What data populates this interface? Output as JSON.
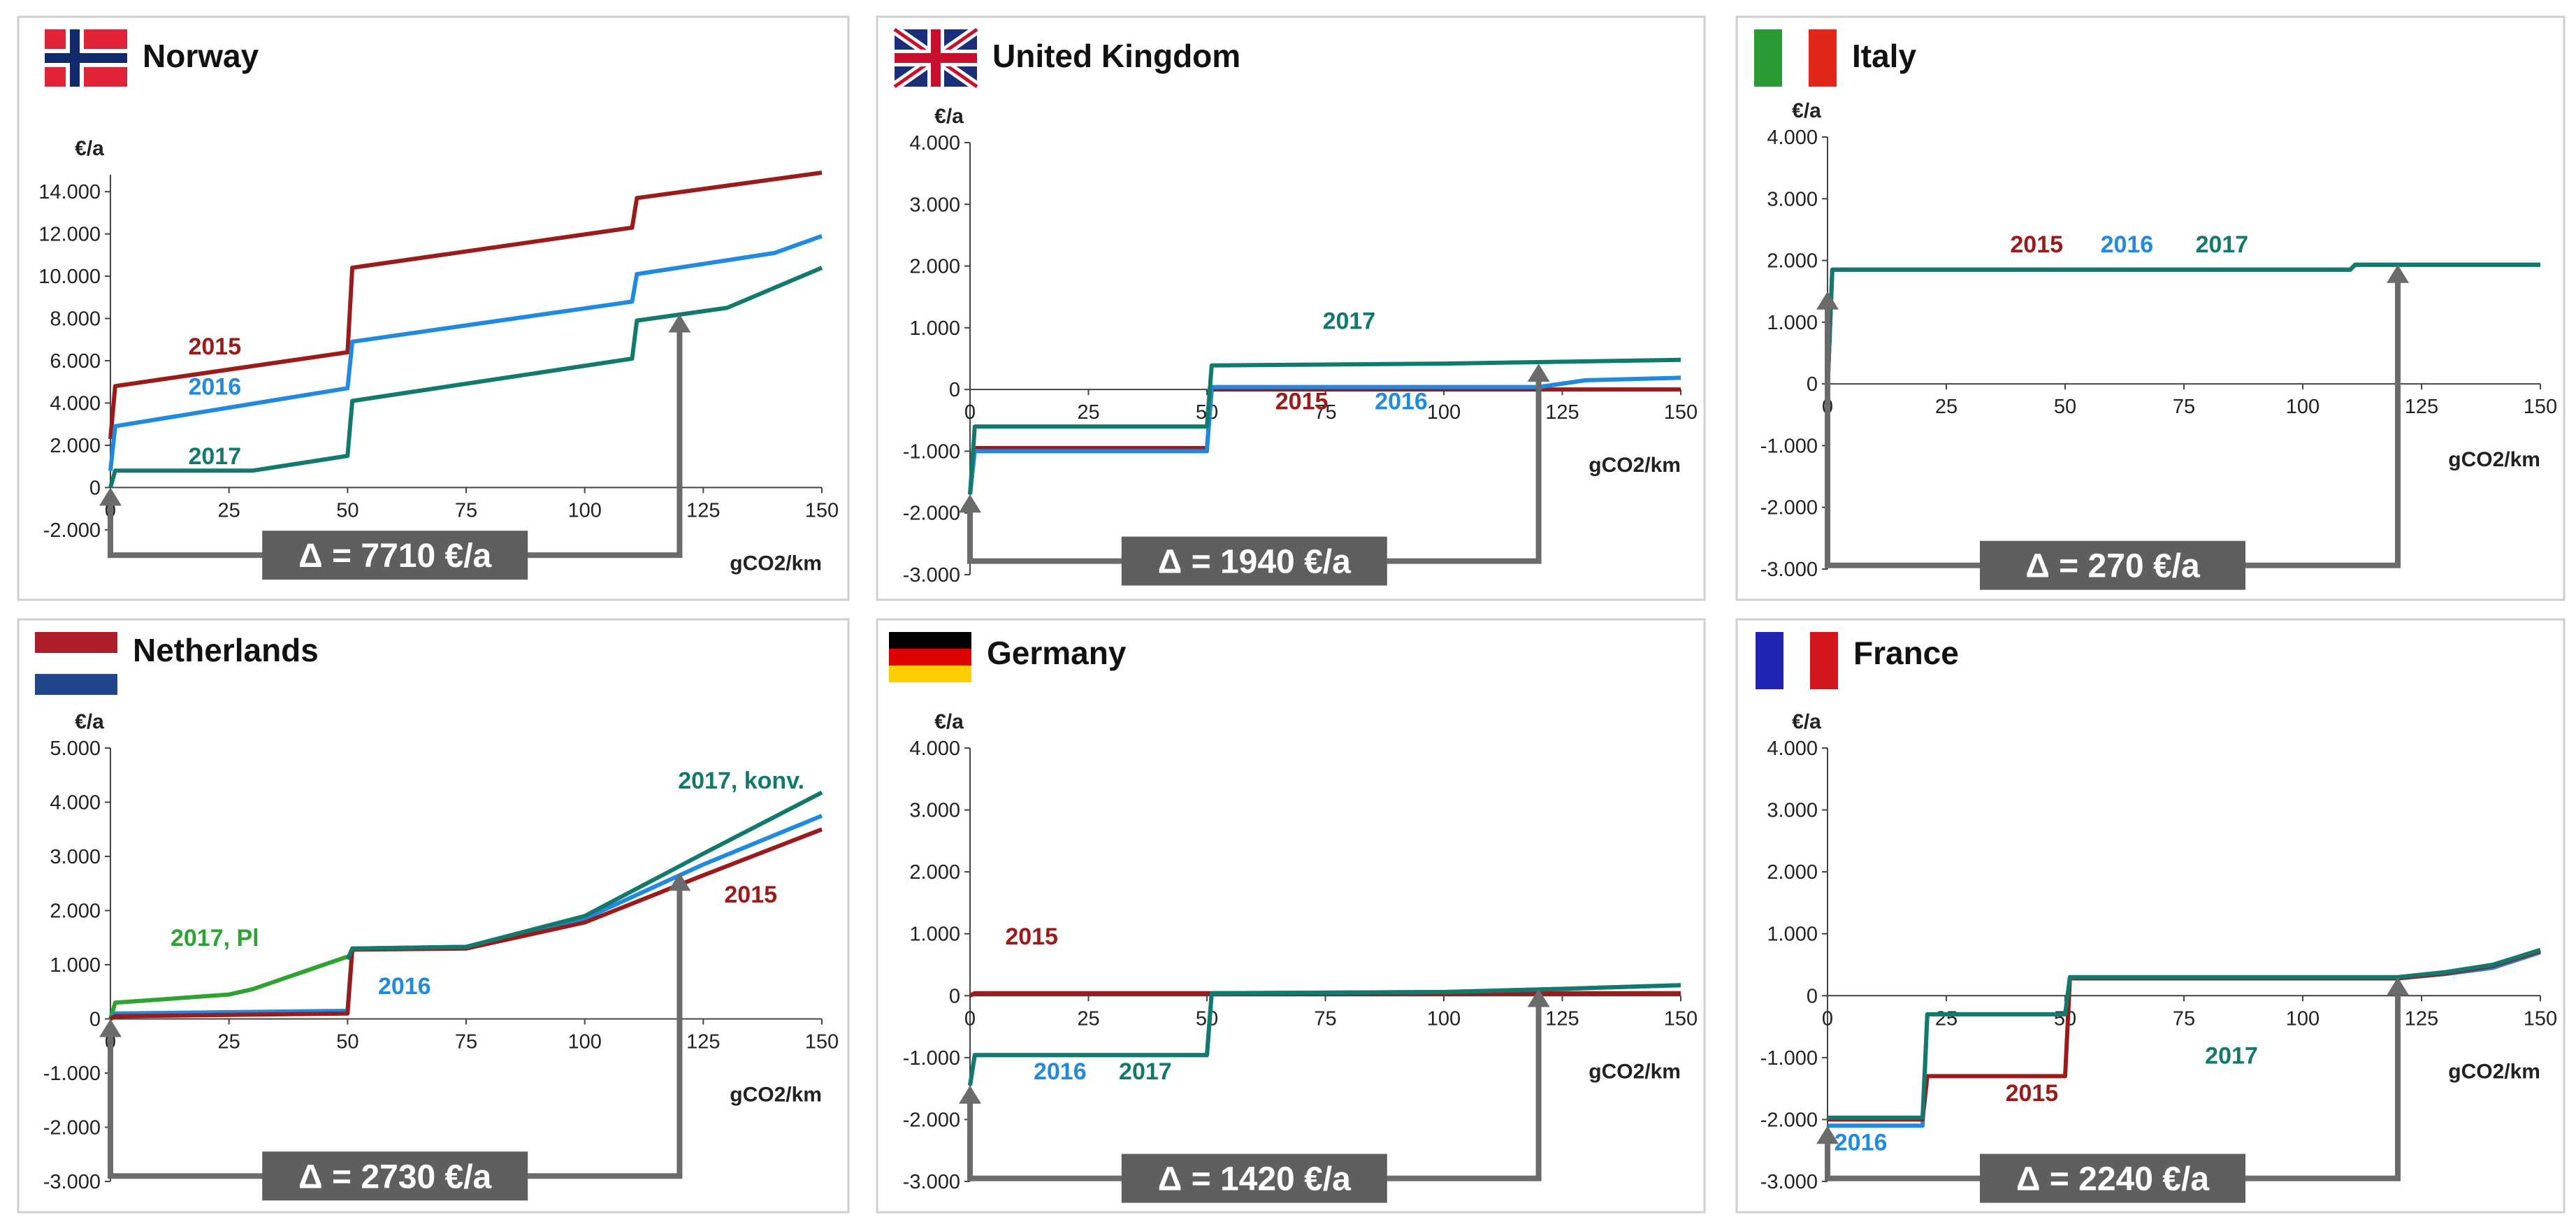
{
  "chart_data": [
    {
      "id": "norway",
      "type": "line",
      "country": "Norway",
      "flag": "norway-flag",
      "y_unit": "€/a",
      "x_unit": "gCO2/km",
      "x_ticks": [
        0,
        25,
        50,
        75,
        100,
        125,
        150
      ],
      "y_ticks": [
        -2000,
        0,
        2000,
        4000,
        6000,
        8000,
        10000,
        12000,
        14000
      ],
      "y_tick_labels": [
        "-2.000",
        "0",
        "2.000",
        "4.000",
        "6.000",
        "8.000",
        "10.000",
        "12.000",
        "14.000"
      ],
      "highlight_tick_label": "14.000",
      "highlight_tick_color": "#e3241b",
      "xlim": [
        0,
        150
      ],
      "ylim": [
        -2600,
        14800
      ],
      "series": [
        {
          "name": "2015",
          "color": "#9b1a1a",
          "x": [
            0,
            1,
            50,
            51,
            110,
            111,
            150
          ],
          "y": [
            2300,
            4800,
            6400,
            10400,
            12300,
            13700,
            14900
          ]
        },
        {
          "name": "2016",
          "color": "#1f8ae0",
          "x": [
            0,
            1,
            50,
            51,
            110,
            111,
            140,
            150
          ],
          "y": [
            800,
            2900,
            4700,
            6900,
            8800,
            10100,
            11100,
            11900
          ]
        },
        {
          "name": "2017",
          "color": "#127a6c",
          "x": [
            0,
            1,
            30,
            50,
            51,
            110,
            111,
            130,
            150
          ],
          "y": [
            0,
            800,
            800,
            1500,
            4100,
            6100,
            7900,
            8500,
            10400
          ]
        }
      ],
      "labels": [
        {
          "text": "2015",
          "color": "#9b1a1a",
          "x": 22,
          "y": 6300
        },
        {
          "text": "2016",
          "color": "#1f8ae0",
          "x": 22,
          "y": 4400
        },
        {
          "text": "2017",
          "color": "#127a6c",
          "x": 22,
          "y": 1100
        }
      ],
      "arrow": {
        "x_from": 0,
        "x_to": 120,
        "y_left": 0,
        "y_right": 8200,
        "y_bottom": -3200
      },
      "delta": "Δ = 7710 €/a"
    },
    {
      "id": "uk",
      "type": "line",
      "country": "United Kingdom",
      "flag": "uk-flag",
      "y_unit": "€/a",
      "x_unit": "gCO2/km",
      "x_ticks": [
        0,
        25,
        50,
        75,
        100,
        125,
        150
      ],
      "y_ticks": [
        -3000,
        -2000,
        -1000,
        0,
        1000,
        2000,
        3000,
        4000
      ],
      "y_tick_labels": [
        "-3.000",
        "-2.000",
        "-1.000",
        "0",
        "1.000",
        "2.000",
        "3.000",
        "4.000"
      ],
      "xlim": [
        0,
        150
      ],
      "ylim": [
        -3000,
        4000
      ],
      "series": [
        {
          "name": "2015",
          "color": "#9b1a1a",
          "x": [
            0,
            1,
            50,
            51,
            150
          ],
          "y": [
            -1700,
            -950,
            -950,
            0,
            0
          ]
        },
        {
          "name": "2016",
          "color": "#1f8ae0",
          "x": [
            0,
            1,
            50,
            51,
            120,
            130,
            150
          ],
          "y": [
            -1700,
            -1000,
            -1000,
            40,
            40,
            150,
            190
          ]
        },
        {
          "name": "2017",
          "color": "#127a6c",
          "x": [
            0,
            1,
            50,
            51,
            100,
            150
          ],
          "y": [
            -1700,
            -600,
            -600,
            390,
            420,
            480
          ]
        }
      ],
      "labels": [
        {
          "text": "2017",
          "color": "#127a6c",
          "x": 80,
          "y": 980
        },
        {
          "text": "2015",
          "color": "#9b1a1a",
          "x": 70,
          "y": -320
        },
        {
          "text": "2016",
          "color": "#1f8ae0",
          "x": 91,
          "y": -320
        }
      ],
      "arrow": {
        "x_from": 0,
        "x_to": 120,
        "y_left": -1700,
        "y_right": 420,
        "y_bottom": -2780
      },
      "delta": "Δ = 1940 €/a"
    },
    {
      "id": "italy",
      "type": "line",
      "country": "Italy",
      "flag": "italy-flag",
      "y_unit": "€/a",
      "x_unit": "gCO2/km",
      "x_ticks": [
        0,
        25,
        50,
        75,
        100,
        125,
        150
      ],
      "y_ticks": [
        -3000,
        -2000,
        -1000,
        0,
        1000,
        2000,
        3000,
        4000
      ],
      "y_tick_labels": [
        "-3.000",
        "-2.000",
        "-1.000",
        "0",
        "1.000",
        "2.000",
        "3.000",
        "4.000"
      ],
      "xlim": [
        0,
        150
      ],
      "ylim": [
        -3000,
        4000
      ],
      "series": [
        {
          "name": "2015",
          "color": "#9b1a1a",
          "x": [
            0,
            1,
            110,
            111,
            150
          ],
          "y": [
            -100,
            1850,
            1850,
            1930,
            1930
          ]
        },
        {
          "name": "2016",
          "color": "#1f8ae0",
          "x": [
            0,
            1,
            110,
            111,
            150
          ],
          "y": [
            -100,
            1850,
            1850,
            1930,
            1930
          ]
        },
        {
          "name": "2017",
          "color": "#127a6c",
          "x": [
            0,
            1,
            110,
            111,
            150
          ],
          "y": [
            -100,
            1850,
            1850,
            1930,
            1930
          ]
        }
      ],
      "labels": [
        {
          "text": "2015",
          "color": "#9b1a1a",
          "x": 44,
          "y": 2130
        },
        {
          "text": "2016",
          "color": "#1f8ae0",
          "x": 63,
          "y": 2130
        },
        {
          "text": "2017",
          "color": "#127a6c",
          "x": 83,
          "y": 2130
        }
      ],
      "arrow": {
        "x_from": 0,
        "x_to": 120,
        "y_left": 1500,
        "y_right": 1930,
        "y_bottom": -2940
      },
      "delta": "Δ = 270 €/a"
    },
    {
      "id": "netherlands",
      "type": "line",
      "country": "Netherlands",
      "flag": "netherlands-flag",
      "y_unit": "€/a",
      "x_unit": "gCO2/km",
      "x_ticks": [
        0,
        25,
        50,
        75,
        100,
        125,
        150
      ],
      "y_ticks": [
        -3000,
        -2000,
        -1000,
        0,
        1000,
        2000,
        3000,
        4000,
        5000
      ],
      "y_tick_labels": [
        "-3.000",
        "-2.000",
        "-1.000",
        "0",
        "1.000",
        "2.000",
        "3.000",
        "4.000",
        "5.000"
      ],
      "xlim": [
        0,
        150
      ],
      "ylim": [
        -3000,
        5000
      ],
      "series": [
        {
          "name": "2017, Pl",
          "color": "#2ea334",
          "x": [
            0,
            1,
            25,
            30,
            40,
            50
          ],
          "y": [
            0,
            300,
            450,
            550,
            850,
            1150
          ]
        },
        {
          "name": "2016",
          "color": "#1f8ae0",
          "x": [
            0,
            1,
            50,
            51,
            75,
            100,
            125,
            150
          ],
          "y": [
            0,
            100,
            150,
            1300,
            1330,
            1850,
            2850,
            3750
          ]
        },
        {
          "name": "2015",
          "color": "#9b1a1a",
          "x": [
            0,
            1,
            50,
            51,
            75,
            100,
            125,
            150
          ],
          "y": [
            0,
            50,
            100,
            1280,
            1300,
            1780,
            2650,
            3500
          ]
        },
        {
          "name": "2017, konv.",
          "color": "#127a6c",
          "x": [
            50,
            51,
            75,
            100,
            125,
            150
          ],
          "y": [
            1100,
            1300,
            1330,
            1900,
            3050,
            4180
          ]
        }
      ],
      "labels": [
        {
          "text": "2017, Pl",
          "color": "#2ea334",
          "x": 22,
          "y": 1350
        },
        {
          "text": "2016",
          "color": "#1f8ae0",
          "x": 62,
          "y": 460
        },
        {
          "text": "2015",
          "color": "#9b1a1a",
          "x": 135,
          "y": 2150
        },
        {
          "text": "2017, konv.",
          "color": "#127a6c",
          "x": 133,
          "y": 4250
        }
      ],
      "arrow": {
        "x_from": 0,
        "x_to": 120,
        "y_left": 0,
        "y_right": 2700,
        "y_bottom": -2900
      },
      "delta": "Δ = 2730 €/a"
    },
    {
      "id": "germany",
      "type": "line",
      "country": "Germany",
      "flag": "germany-flag",
      "y_unit": "€/a",
      "x_unit": "gCO2/km",
      "x_ticks": [
        0,
        25,
        50,
        75,
        100,
        125,
        150
      ],
      "y_ticks": [
        -3000,
        -2000,
        -1000,
        0,
        1000,
        2000,
        3000,
        4000
      ],
      "y_tick_labels": [
        "-3.000",
        "-2.000",
        "-1.000",
        "0",
        "1.000",
        "2.000",
        "3.000",
        "4.000"
      ],
      "xlim": [
        0,
        150
      ],
      "ylim": [
        -3000,
        4000
      ],
      "series": [
        {
          "name": "2015",
          "color": "#9b1a1a",
          "x": [
            0,
            1,
            50,
            51,
            150
          ],
          "y": [
            0,
            40,
            40,
            40,
            40
          ]
        },
        {
          "name": "2016",
          "color": "#1f8ae0",
          "x": [
            0,
            1,
            50,
            51,
            100,
            125,
            150
          ],
          "y": [
            -1450,
            -960,
            -960,
            40,
            60,
            110,
            170
          ]
        },
        {
          "name": "2017",
          "color": "#127a6c",
          "x": [
            0,
            1,
            50,
            51,
            100,
            125,
            150
          ],
          "y": [
            -1450,
            -960,
            -960,
            40,
            60,
            110,
            170
          ]
        }
      ],
      "labels": [
        {
          "text": "2015",
          "color": "#9b1a1a",
          "x": 13,
          "y": 830
        },
        {
          "text": "2016",
          "color": "#1f8ae0",
          "x": 19,
          "y": -1350
        },
        {
          "text": "2017",
          "color": "#127a6c",
          "x": 37,
          "y": -1350
        }
      ],
      "arrow": {
        "x_from": 0,
        "x_to": 120,
        "y_left": -1450,
        "y_right": 110,
        "y_bottom": -2950
      },
      "delta": "Δ = 1420 €/a"
    },
    {
      "id": "france",
      "type": "line",
      "country": "France",
      "flag": "france-flag",
      "y_unit": "€/a",
      "x_unit": "gCO2/km",
      "x_ticks": [
        0,
        25,
        50,
        75,
        100,
        125,
        150
      ],
      "y_ticks": [
        -3000,
        -2000,
        -1000,
        0,
        1000,
        2000,
        3000,
        4000
      ],
      "y_tick_labels": [
        "-3.000",
        "-2.000",
        "-1.000",
        "0",
        "1.000",
        "2.000",
        "3.000",
        "4.000"
      ],
      "xlim": [
        0,
        150
      ],
      "ylim": [
        -3000,
        4000
      ],
      "series": [
        {
          "name": "2016",
          "color": "#1f8ae0",
          "x": [
            0,
            20,
            21,
            50,
            51,
            120,
            130,
            140,
            150
          ],
          "y": [
            -2100,
            -2100,
            -300,
            -300,
            280,
            280,
            350,
            450,
            700
          ]
        },
        {
          "name": "2015",
          "color": "#9b1a1a",
          "x": [
            0,
            20,
            21,
            50,
            51,
            120,
            130,
            140,
            150
          ],
          "y": [
            -2000,
            -2000,
            -1300,
            -1300,
            280,
            280,
            360,
            480,
            720
          ]
        },
        {
          "name": "2017",
          "color": "#127a6c",
          "x": [
            0,
            20,
            21,
            50,
            51,
            120,
            130,
            140,
            150
          ],
          "y": [
            -1970,
            -1970,
            -300,
            -300,
            300,
            300,
            380,
            500,
            740
          ]
        }
      ],
      "labels": [
        {
          "text": "2015",
          "color": "#9b1a1a",
          "x": 43,
          "y": -1700
        },
        {
          "text": "2017",
          "color": "#127a6c",
          "x": 85,
          "y": -1100
        },
        {
          "text": "2016",
          "color": "#1f8ae0",
          "x": 7,
          "y": -2500
        }
      ],
      "arrow": {
        "x_from": 0,
        "x_to": 120,
        "y_left": -2100,
        "y_right": 300,
        "y_bottom": -2950
      },
      "delta": "Δ = 2240 €/a"
    }
  ]
}
